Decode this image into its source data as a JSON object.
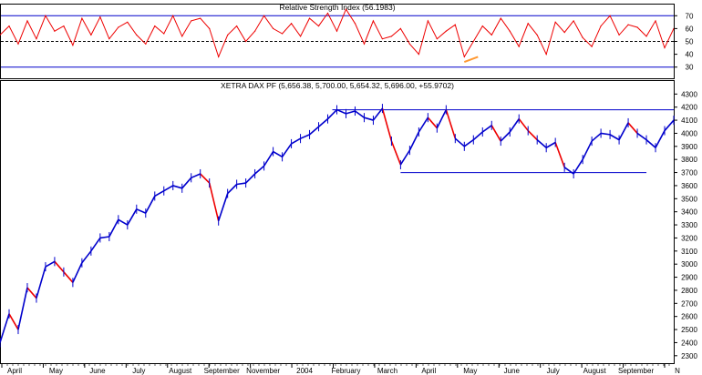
{
  "chart_data": [
    {
      "type": "line",
      "title": "Relative Strength Index (56.1983)",
      "ylim": [
        22,
        78
      ],
      "y_ticks": [
        30,
        40,
        50,
        60,
        70
      ],
      "reference_lines": [
        30,
        50,
        70
      ],
      "colors": {
        "line": "#ee0000",
        "reference": "#0000cc",
        "highlight": "#ff9933"
      },
      "x": [
        0,
        10,
        20,
        30,
        40,
        50,
        60,
        70,
        80,
        90,
        100,
        110,
        120,
        130,
        140,
        150,
        160,
        170,
        180,
        190,
        200,
        210,
        220,
        230,
        240,
        250,
        260,
        270,
        280,
        290,
        300,
        310,
        320,
        330,
        340,
        350,
        360,
        370,
        380,
        390,
        400,
        410,
        420,
        430,
        440,
        450,
        460,
        470,
        480,
        490,
        500,
        510,
        520,
        530,
        540,
        550,
        560,
        570,
        580,
        590,
        600,
        610,
        620,
        630,
        640,
        650,
        660,
        670,
        680,
        690,
        700,
        710,
        720,
        730,
        740
      ],
      "values": [
        55,
        62,
        48,
        66,
        52,
        70,
        58,
        62,
        47,
        68,
        55,
        69,
        52,
        61,
        65,
        55,
        48,
        62,
        56,
        70,
        54,
        66,
        68,
        60,
        38,
        55,
        62,
        50,
        58,
        70,
        60,
        56,
        64,
        54,
        68,
        62,
        72,
        58,
        75,
        64,
        48,
        66,
        52,
        54,
        60,
        48,
        40,
        66,
        52,
        58,
        63,
        38,
        50,
        62,
        55,
        68,
        58,
        46,
        64,
        55,
        40,
        65,
        57,
        66,
        53,
        46,
        62,
        70,
        55,
        63,
        61,
        54,
        66,
        45,
        60
      ],
      "highlight_segment": {
        "x": [
          510,
          525
        ],
        "values": [
          34,
          38
        ]
      },
      "x_ticks": [
        "April",
        "May",
        "June",
        "July",
        "August",
        "September",
        "November",
        "2004",
        "February",
        "March",
        "April",
        "May",
        "June",
        "July",
        "August",
        "September",
        "N"
      ]
    },
    {
      "type": "line",
      "title": "XETRA DAX PF (5,656.38, 5,700.00, 5,654.32, 5,696.00, +55.9702)",
      "ylim": [
        2250,
        4330
      ],
      "y_ticks": [
        2300,
        2400,
        2500,
        2600,
        2700,
        2800,
        2900,
        3000,
        3100,
        3200,
        3300,
        3400,
        3500,
        3600,
        3700,
        3800,
        3900,
        4000,
        4100,
        4200,
        4300
      ],
      "x": [
        0,
        10,
        20,
        30,
        40,
        50,
        60,
        70,
        80,
        90,
        100,
        110,
        120,
        130,
        140,
        150,
        160,
        170,
        180,
        190,
        200,
        210,
        220,
        230,
        240,
        250,
        260,
        270,
        280,
        290,
        300,
        310,
        320,
        330,
        340,
        350,
        360,
        370,
        380,
        390,
        400,
        410,
        420,
        430,
        440,
        450,
        460,
        470,
        480,
        490,
        500,
        510,
        520,
        530,
        540,
        550,
        560,
        570,
        580,
        590,
        600,
        610,
        620,
        630,
        640,
        650,
        660,
        670,
        680,
        690,
        700,
        710,
        720,
        730,
        740
      ],
      "values": [
        2400,
        2620,
        2500,
        2820,
        2740,
        2980,
        3020,
        2940,
        2860,
        3010,
        3100,
        3200,
        3210,
        3340,
        3300,
        3420,
        3390,
        3520,
        3560,
        3600,
        3580,
        3660,
        3690,
        3620,
        3330,
        3540,
        3610,
        3620,
        3690,
        3750,
        3860,
        3820,
        3920,
        3960,
        3990,
        4050,
        4110,
        4180,
        4150,
        4170,
        4120,
        4100,
        4190,
        3940,
        3760,
        3870,
        4010,
        4120,
        4040,
        4180,
        3960,
        3900,
        3950,
        4010,
        4060,
        3940,
        4010,
        4110,
        4020,
        3950,
        3890,
        3930,
        3740,
        3690,
        3800,
        3940,
        4000,
        3990,
        3950,
        4080,
        4000,
        3950,
        3890,
        4020,
        4100
      ],
      "colors": {
        "line": "#0000cc",
        "down_segments": "#ee0000",
        "support_resistance": "#0000cc"
      },
      "reference_lines": [
        {
          "label": "",
          "value": 4180,
          "x_range": [
            365,
            740
          ]
        },
        {
          "label": "",
          "value": 3700,
          "x_range": [
            440,
            710
          ]
        }
      ],
      "x_ticks": [
        "April",
        "May",
        "June",
        "July",
        "August",
        "September",
        "November",
        "2004",
        "February",
        "March",
        "April",
        "May",
        "June",
        "July",
        "August",
        "September",
        "N"
      ]
    }
  ]
}
